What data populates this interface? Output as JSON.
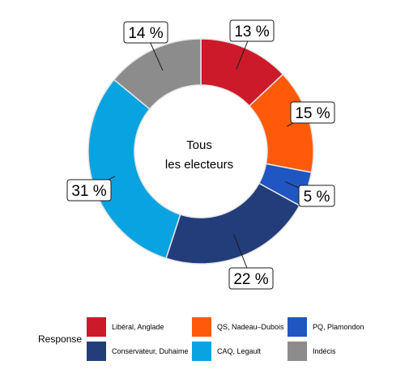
{
  "chart_data": {
    "type": "pie",
    "style": "donut",
    "center_label": [
      "Tous",
      "les electeurs"
    ],
    "legend": {
      "title": "Response",
      "placement": "bottom"
    },
    "slices": [
      {
        "name": "Libéral, Anglade",
        "value": 13,
        "label": "13 %",
        "color": "#cc1a2b"
      },
      {
        "name": "QS, Nadeau–Dubois",
        "value": 15,
        "label": "15 %",
        "color": "#ff5a0a"
      },
      {
        "name": "PQ, Plamondon",
        "value": 5,
        "label": "5 %",
        "color": "#1f56c2"
      },
      {
        "name": "Conservateur, Duhaime",
        "value": 22,
        "label": "22 %",
        "color": "#233d7b"
      },
      {
        "name": "CAQ, Legault",
        "value": 31,
        "label": "31 %",
        "color": "#0aa3e1"
      },
      {
        "name": "Indécis",
        "value": 14,
        "label": "14 %",
        "color": "#8c8c8c"
      }
    ]
  }
}
